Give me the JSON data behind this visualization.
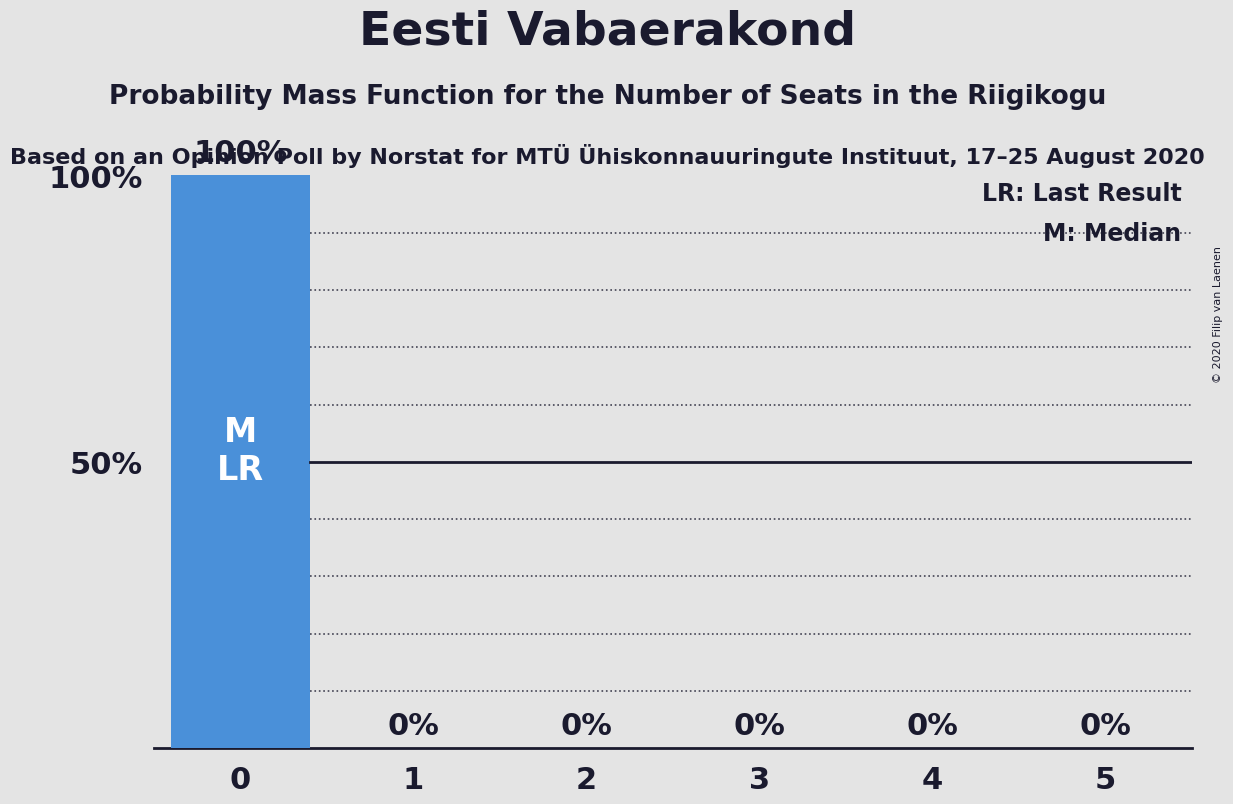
{
  "title": "Eesti Vabaerakond",
  "subtitle": "Probability Mass Function for the Number of Seats in the Riigikogu",
  "sub_subtitle": "Based on an Opinion Poll by Norstat for MTÜ Ühiskonnauuringute Instituut, 17–25 August 2020",
  "copyright": "© 2020 Filip van Laenen",
  "categories": [
    0,
    1,
    2,
    3,
    4,
    5
  ],
  "values": [
    1.0,
    0.0,
    0.0,
    0.0,
    0.0,
    0.0
  ],
  "bar_labels": [
    "100%",
    "0%",
    "0%",
    "0%",
    "0%",
    "0%"
  ],
  "bar_color": "#4a90d9",
  "background_color": "#e4e4e4",
  "plot_background_color": "#e4e4e4",
  "lr_value": 0.5,
  "median_value": 0.5,
  "legend_lr": "LR: Last Result",
  "legend_m": "M: Median",
  "title_fontsize": 34,
  "subtitle_fontsize": 19,
  "sub_subtitle_fontsize": 16,
  "bar_label_fontsize": 22,
  "axis_label_fontsize": 22,
  "annotation_fontsize": 24,
  "xlim": [
    -0.5,
    5.5
  ],
  "ylim": [
    0,
    1.0
  ],
  "dotted_lines": [
    0.1,
    0.2,
    0.3,
    0.4,
    0.6,
    0.7,
    0.8,
    0.9
  ]
}
